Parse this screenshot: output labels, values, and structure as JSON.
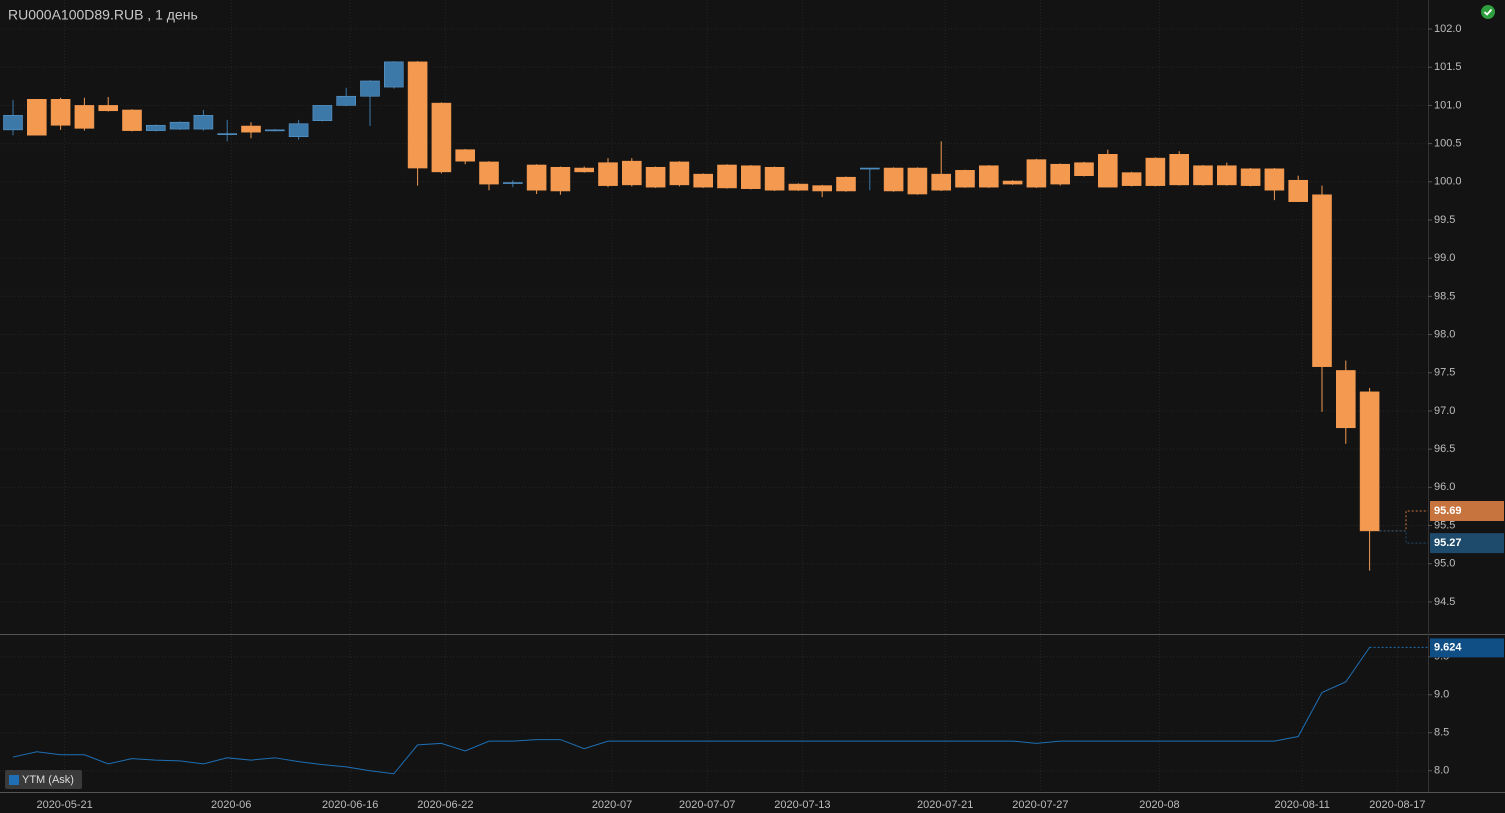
{
  "chart_data": [
    {
      "type": "candlestick",
      "title": "RU000A100D89.RUB , 1 день",
      "categories": [
        null,
        null,
        "2020-05-21",
        null,
        null,
        null,
        null,
        null,
        null,
        "2020-06",
        null,
        null,
        null,
        null,
        "2020-06-16",
        null,
        null,
        null,
        "2020-06-22",
        null,
        null,
        null,
        null,
        null,
        null,
        "2020-07",
        null,
        null,
        null,
        "2020-07-07",
        null,
        null,
        null,
        "2020-07-13",
        null,
        null,
        null,
        null,
        null,
        "2020-07-21",
        null,
        null,
        null,
        "2020-07-27",
        null,
        null,
        null,
        null,
        "2020-08",
        null,
        null,
        null,
        null,
        null,
        "2020-08-11",
        null,
        null,
        null,
        "2020-08-17"
      ],
      "open": [
        100.68,
        101.08,
        101.08,
        101.0,
        101.0,
        100.94,
        100.67,
        100.69,
        100.69,
        100.62,
        100.73,
        100.67,
        100.59,
        100.8,
        101.0,
        101.12,
        101.24,
        101.57,
        101.03,
        100.42,
        100.26,
        99.98,
        100.22,
        100.19,
        100.18,
        100.25,
        100.27,
        100.19,
        100.26,
        100.1,
        100.22,
        100.21,
        100.19,
        99.97,
        99.95,
        100.06,
        100.17,
        100.18,
        100.18,
        100.1,
        100.15,
        100.21,
        100.01,
        100.29,
        100.23,
        100.25,
        100.36,
        100.12,
        100.31,
        100.36,
        100.21,
        100.21,
        100.17,
        100.17,
        100.02,
        99.83,
        97.53,
        97.25,
        null
      ],
      "high": [
        101.07,
        101.08,
        101.1,
        101.1,
        101.11,
        100.95,
        100.75,
        100.79,
        100.94,
        100.81,
        100.78,
        100.69,
        100.81,
        101.0,
        101.23,
        101.33,
        101.58,
        101.58,
        101.04,
        100.43,
        100.27,
        100.02,
        100.23,
        100.2,
        100.2,
        100.31,
        100.31,
        100.2,
        100.27,
        100.11,
        100.23,
        100.22,
        100.2,
        99.98,
        99.96,
        100.07,
        100.18,
        100.19,
        100.19,
        100.53,
        100.16,
        100.22,
        100.02,
        100.3,
        100.24,
        100.26,
        100.42,
        100.13,
        100.32,
        100.4,
        100.22,
        100.25,
        100.18,
        100.18,
        100.08,
        99.95,
        97.66,
        97.3,
        null
      ],
      "low": [
        100.61,
        100.61,
        100.68,
        100.67,
        100.92,
        100.66,
        100.66,
        100.68,
        100.67,
        100.53,
        100.57,
        100.66,
        100.55,
        100.79,
        100.99,
        100.73,
        101.22,
        99.95,
        100.11,
        100.23,
        99.89,
        99.93,
        99.84,
        99.83,
        100.12,
        99.93,
        99.94,
        99.92,
        99.94,
        99.92,
        99.91,
        99.9,
        99.88,
        99.88,
        99.8,
        99.87,
        99.89,
        99.87,
        99.83,
        99.88,
        99.92,
        99.92,
        99.96,
        99.92,
        99.95,
        100.07,
        99.93,
        99.94,
        99.94,
        99.95,
        99.95,
        99.95,
        99.94,
        99.76,
        99.74,
        96.99,
        96.57,
        94.91,
        null
      ],
      "close": [
        100.87,
        100.61,
        100.74,
        100.7,
        100.93,
        100.67,
        100.74,
        100.78,
        100.87,
        100.63,
        100.65,
        100.68,
        100.76,
        101.0,
        101.12,
        101.32,
        101.57,
        100.18,
        100.13,
        100.27,
        99.97,
        99.99,
        99.89,
        99.88,
        100.13,
        99.95,
        99.96,
        99.93,
        99.96,
        99.93,
        99.92,
        99.91,
        99.89,
        99.89,
        99.88,
        99.88,
        100.18,
        99.88,
        99.84,
        99.89,
        99.93,
        99.93,
        99.97,
        99.93,
        99.97,
        100.08,
        99.93,
        99.95,
        99.95,
        99.96,
        99.96,
        99.96,
        99.95,
        99.89,
        99.74,
        97.58,
        96.78,
        95.43,
        null
      ],
      "up_color": "#3d79a8",
      "down_color": "#f39a50",
      "ylim": [
        94.08,
        102.38
      ],
      "yticks": [
        {
          "value": 102,
          "label": "102.0"
        },
        101.5,
        {
          "value": 101,
          "label": "101.0"
        },
        100.5,
        {
          "value": 100,
          "label": "100.0"
        },
        99.5,
        {
          "value": 99,
          "label": "99.0"
        },
        98.5,
        {
          "value": 98,
          "label": "98.0"
        },
        97.5,
        {
          "value": 97,
          "label": "97.0"
        },
        96.5,
        {
          "value": 96,
          "label": "96.0"
        },
        95.5,
        {
          "value": 95,
          "label": "95.0"
        },
        94.5
      ],
      "grid": true,
      "price_labels": [
        {
          "value": 95.69,
          "color": "#c8743f"
        },
        {
          "value": 95.27,
          "color": "#1e4a6b"
        }
      ]
    },
    {
      "type": "line",
      "series": [
        {
          "name": "YTM (Ask)",
          "color": "#1e6fb5",
          "values": [
            8.18,
            8.25,
            8.21,
            8.21,
            8.09,
            8.16,
            8.14,
            8.13,
            8.09,
            8.17,
            8.14,
            8.17,
            8.12,
            8.08,
            8.05,
            8.0,
            7.96,
            8.34,
            8.36,
            8.26,
            8.39,
            8.39,
            8.41,
            8.41,
            8.29,
            8.39,
            8.39,
            8.39,
            8.39,
            8.39,
            8.39,
            8.39,
            8.39,
            8.39,
            8.39,
            8.39,
            8.39,
            8.39,
            8.39,
            8.39,
            8.39,
            8.39,
            8.39,
            8.36,
            8.39,
            8.39,
            8.39,
            8.39,
            8.39,
            8.39,
            8.39,
            8.39,
            8.39,
            8.39,
            8.45,
            9.03,
            9.17,
            9.624,
            null
          ]
        }
      ],
      "ylim": [
        7.72,
        9.8
      ],
      "yticks": [
        9.5,
        {
          "value": 9,
          "label": "9.0"
        },
        8.5,
        {
          "value": 8,
          "label": "8.0"
        }
      ],
      "grid": true,
      "last_label": {
        "value": 9.624,
        "color": "#0f4f86"
      }
    }
  ]
}
